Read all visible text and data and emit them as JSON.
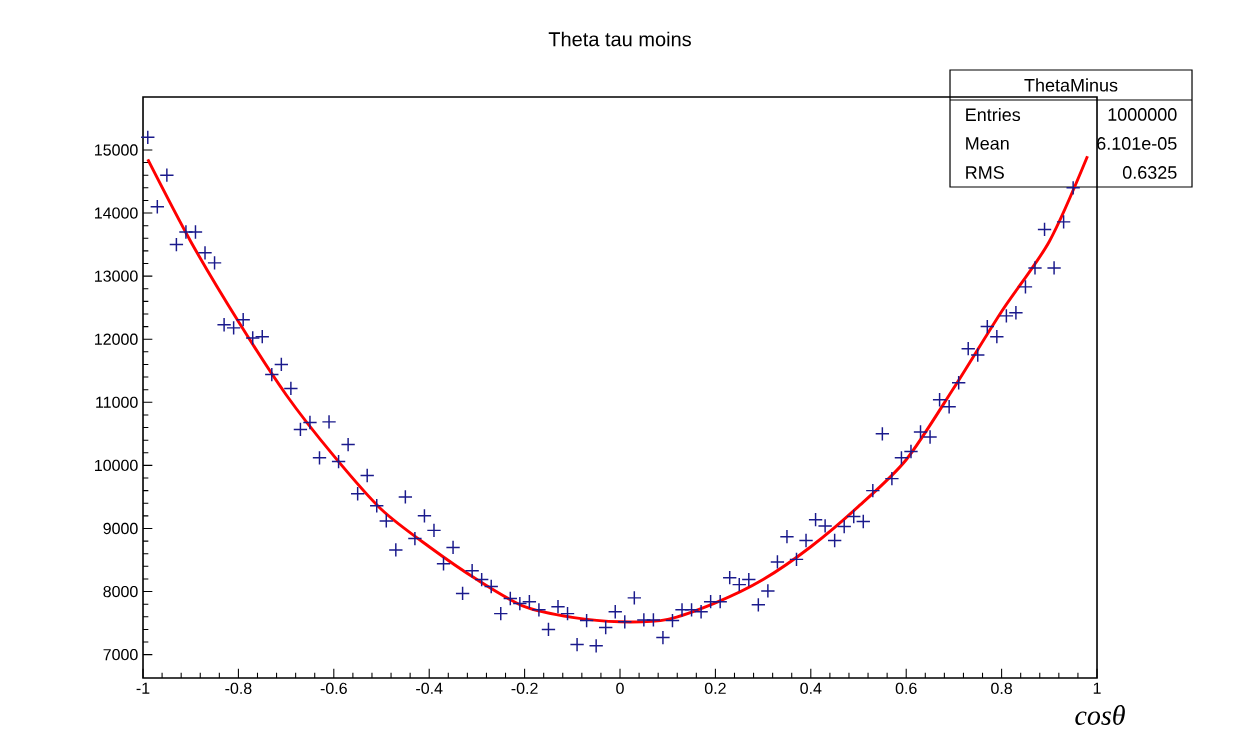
{
  "chart_data": {
    "type": "scatter",
    "title": "Theta tau moins",
    "xlabel": "cosθ",
    "x": [
      -0.99,
      -0.97,
      -0.95,
      -0.93,
      -0.91,
      -0.89,
      -0.87,
      -0.85,
      -0.83,
      -0.81,
      -0.79,
      -0.77,
      -0.75,
      -0.73,
      -0.71,
      -0.69,
      -0.67,
      -0.65,
      -0.63,
      -0.61,
      -0.59,
      -0.57,
      -0.55,
      -0.53,
      -0.51,
      -0.49,
      -0.47,
      -0.45,
      -0.43,
      -0.41,
      -0.39,
      -0.37,
      -0.35,
      -0.33,
      -0.31,
      -0.29,
      -0.27,
      -0.25,
      -0.23,
      -0.21,
      -0.19,
      -0.17,
      -0.15,
      -0.13,
      -0.11,
      -0.09,
      -0.07,
      -0.05,
      -0.03,
      -0.01,
      0.01,
      0.03,
      0.05,
      0.07,
      0.09,
      0.11,
      0.13,
      0.15,
      0.17,
      0.19,
      0.21,
      0.23,
      0.25,
      0.27,
      0.29,
      0.31,
      0.33,
      0.35,
      0.37,
      0.39,
      0.41,
      0.43,
      0.45,
      0.47,
      0.49,
      0.51,
      0.53,
      0.55,
      0.57,
      0.59,
      0.61,
      0.63,
      0.65,
      0.67,
      0.69,
      0.71,
      0.73,
      0.75,
      0.77,
      0.79,
      0.81,
      0.83,
      0.85,
      0.87,
      0.89,
      0.91,
      0.93,
      0.95
    ],
    "series": [
      {
        "color": "#1a1a8c",
        "marker": "cross",
        "values": [
          15200,
          14100,
          14600,
          13500,
          13700,
          13700,
          13370,
          13210,
          12230,
          12180,
          12310,
          12020,
          12040,
          11440,
          11600,
          11220,
          10570,
          10680,
          10120,
          10690,
          10060,
          10330,
          9550,
          9840,
          9360,
          9120,
          8660,
          9500,
          8840,
          9200,
          8970,
          8440,
          8700,
          7970,
          8330,
          8190,
          8080,
          7650,
          7890,
          7810,
          7840,
          7710,
          7400,
          7760,
          7650,
          7160,
          7540,
          7140,
          7430,
          7680,
          7520,
          7900,
          7550,
          7550,
          7270,
          7540,
          7710,
          7710,
          7680,
          7840,
          7840,
          8220,
          8110,
          8190,
          7790,
          8010,
          8470,
          8870,
          8510,
          8810,
          9140,
          9040,
          8810,
          9030,
          9190,
          9110,
          9600,
          10500,
          9790,
          10120,
          10220,
          10530,
          10450,
          11040,
          10930,
          11310,
          11850,
          11750,
          12200,
          12040,
          12370,
          12420,
          12830,
          13130,
          13740,
          13130,
          13860,
          14400
        ]
      },
      {
        "type": "line",
        "color": "#ff0000",
        "marker": "none",
        "x": [
          -0.99,
          -0.9,
          -0.8,
          -0.7,
          -0.6,
          -0.5,
          -0.4,
          -0.3,
          -0.2,
          -0.1,
          0,
          0.1,
          0.2,
          0.3,
          0.4,
          0.5,
          0.6,
          0.7,
          0.8,
          0.9,
          0.98
        ],
        "values": [
          14850,
          13550,
          12280,
          11120,
          10150,
          9300,
          8710,
          8190,
          7760,
          7590,
          7520,
          7560,
          7820,
          8190,
          8710,
          9350,
          10090,
          11230,
          12440,
          13550,
          14900
        ]
      }
    ],
    "xlim": [
      -1,
      1
    ],
    "ylim": [
      6630,
      15840
    ],
    "xticks": [
      -1,
      -0.8,
      -0.6,
      -0.4,
      -0.2,
      0,
      0.2,
      0.4,
      0.6,
      0.8,
      1
    ],
    "yticks": [
      7000,
      8000,
      9000,
      10000,
      11000,
      12000,
      13000,
      14000,
      15000
    ],
    "annotations": [
      "ThetaMinus",
      "Entries",
      "1000000",
      "Mean",
      "6.101e-05",
      "RMS",
      "0.6325"
    ],
    "grid": false
  }
}
